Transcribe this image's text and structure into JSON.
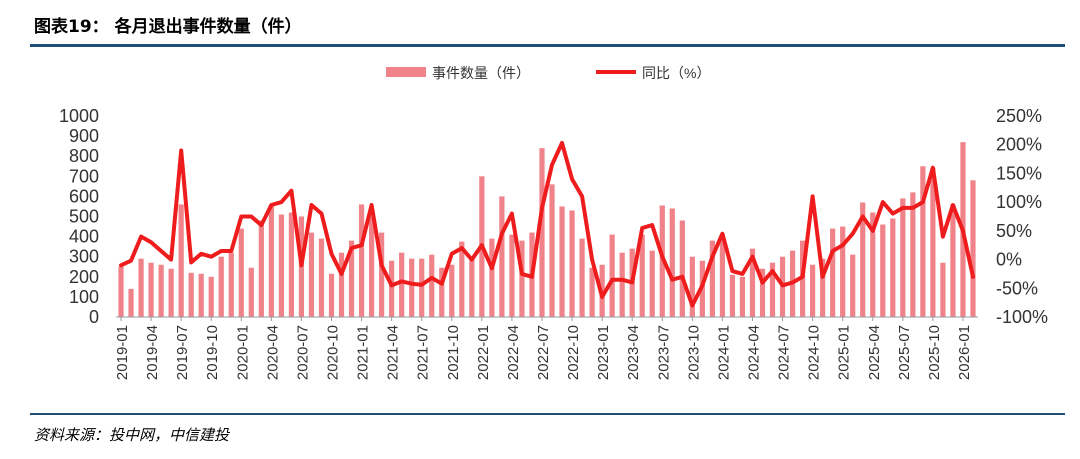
{
  "figure_title": "图表19： 各月退出事件数量（件）",
  "source": "资料来源：投中网，中信建投",
  "colors": {
    "bar": "#f0838a",
    "line": "#ee1c1c",
    "rule": "#1f4e79"
  },
  "chart_data": {
    "type": "bar+line",
    "title": "",
    "legend_position": "top-center",
    "grid": false,
    "categories": [
      "2019-01",
      "2019-02",
      "2019-03",
      "2019-04",
      "2019-05",
      "2019-06",
      "2019-07",
      "2019-08",
      "2019-09",
      "2019-10",
      "2019-11",
      "2019-12",
      "2020-01",
      "2020-02",
      "2020-03",
      "2020-04",
      "2020-05",
      "2020-06",
      "2020-07",
      "2020-08",
      "2020-09",
      "2020-10",
      "2020-11",
      "2020-12",
      "2021-01",
      "2021-02",
      "2021-03",
      "2021-04",
      "2021-05",
      "2021-06",
      "2021-07",
      "2021-08",
      "2021-09",
      "2021-10",
      "2021-11",
      "2021-12",
      "2022-01",
      "2022-02",
      "2022-03",
      "2022-04",
      "2022-05",
      "2022-06",
      "2022-07",
      "2022-08",
      "2022-09",
      "2022-10",
      "2022-11",
      "2022-12",
      "2023-01",
      "2023-02",
      "2023-03",
      "2023-04",
      "2023-05",
      "2023-06",
      "2023-07",
      "2023-08",
      "2023-09",
      "2023-10",
      "2023-11",
      "2023-12",
      "2024-01",
      "2024-02",
      "2024-03",
      "2024-04",
      "2024-05",
      "2024-06",
      "2024-07",
      "2024-08",
      "2024-09",
      "2024-10",
      "2024-11",
      "2024-12",
      "2025-01",
      "2025-02",
      "2025-03",
      "2025-04",
      "2025-05",
      "2025-06",
      "2025-07",
      "2025-08",
      "2025-09",
      "2025-10",
      "2025-11",
      "2025-12",
      "2026-01",
      "2026-02"
    ],
    "x_tick_labels": [
      "2019-01",
      "2019-04",
      "2019-07",
      "2019-10",
      "2020-01",
      "2020-04",
      "2020-07",
      "2020-10",
      "2021-01",
      "2021-04",
      "2021-07",
      "2021-10",
      "2022-01",
      "2022-04",
      "2022-07",
      "2022-10",
      "2023-01",
      "2023-04",
      "2023-07",
      "2023-10",
      "2024-01",
      "2024-04",
      "2024-07",
      "2024-10",
      "2025-01",
      "2025-04",
      "2025-07",
      "2025-10",
      "2026-01"
    ],
    "y_left": {
      "ylim": [
        0,
        1000
      ],
      "ticks": [
        "0",
        "100",
        "200",
        "300",
        "400",
        "500",
        "600",
        "700",
        "800",
        "900",
        "1000"
      ]
    },
    "y_right": {
      "ylim": [
        -100,
        250
      ],
      "ticks": [
        "-100%",
        "-50%",
        "0%",
        "50%",
        "100%",
        "150%",
        "200%",
        "250%"
      ]
    },
    "series": [
      {
        "name": "事件数量（件）",
        "type": "bar",
        "axis": "left",
        "values": [
          250,
          140,
          290,
          270,
          260,
          240,
          560,
          220,
          215,
          200,
          300,
          320,
          440,
          245,
          480,
          560,
          510,
          520,
          500,
          420,
          390,
          215,
          320,
          380,
          560,
          500,
          420,
          280,
          320,
          290,
          290,
          310,
          245,
          260,
          375,
          290,
          700,
          390,
          600,
          410,
          380,
          420,
          840,
          660,
          550,
          530,
          390,
          245,
          260,
          410,
          320,
          340,
          410,
          330,
          555,
          540,
          480,
          300,
          280,
          380,
          410,
          210,
          200,
          340,
          240,
          270,
          300,
          330,
          380,
          260,
          290,
          440,
          450,
          310,
          570,
          520,
          460,
          490,
          590,
          620,
          750,
          740,
          270,
          560,
          870,
          680
        ]
      },
      {
        "name": "同比（%）",
        "type": "line",
        "axis": "right",
        "values": [
          -10,
          -2,
          40,
          30,
          15,
          0,
          190,
          -5,
          10,
          5,
          15,
          15,
          75,
          75,
          60,
          95,
          100,
          120,
          -10,
          95,
          80,
          10,
          -25,
          20,
          25,
          95,
          -10,
          -45,
          -38,
          -42,
          -44,
          -32,
          -42,
          10,
          20,
          0,
          25,
          -15,
          45,
          80,
          -25,
          -30,
          90,
          165,
          203,
          140,
          110,
          0,
          -65,
          -35,
          -35,
          -40,
          55,
          60,
          5,
          -35,
          -30,
          -80,
          -45,
          5,
          45,
          -20,
          -25,
          5,
          -40,
          -20,
          -45,
          -40,
          -30,
          110,
          -30,
          15,
          25,
          45,
          75,
          50,
          100,
          80,
          90,
          90,
          100,
          160,
          40,
          95,
          50,
          -30
        ]
      }
    ]
  }
}
